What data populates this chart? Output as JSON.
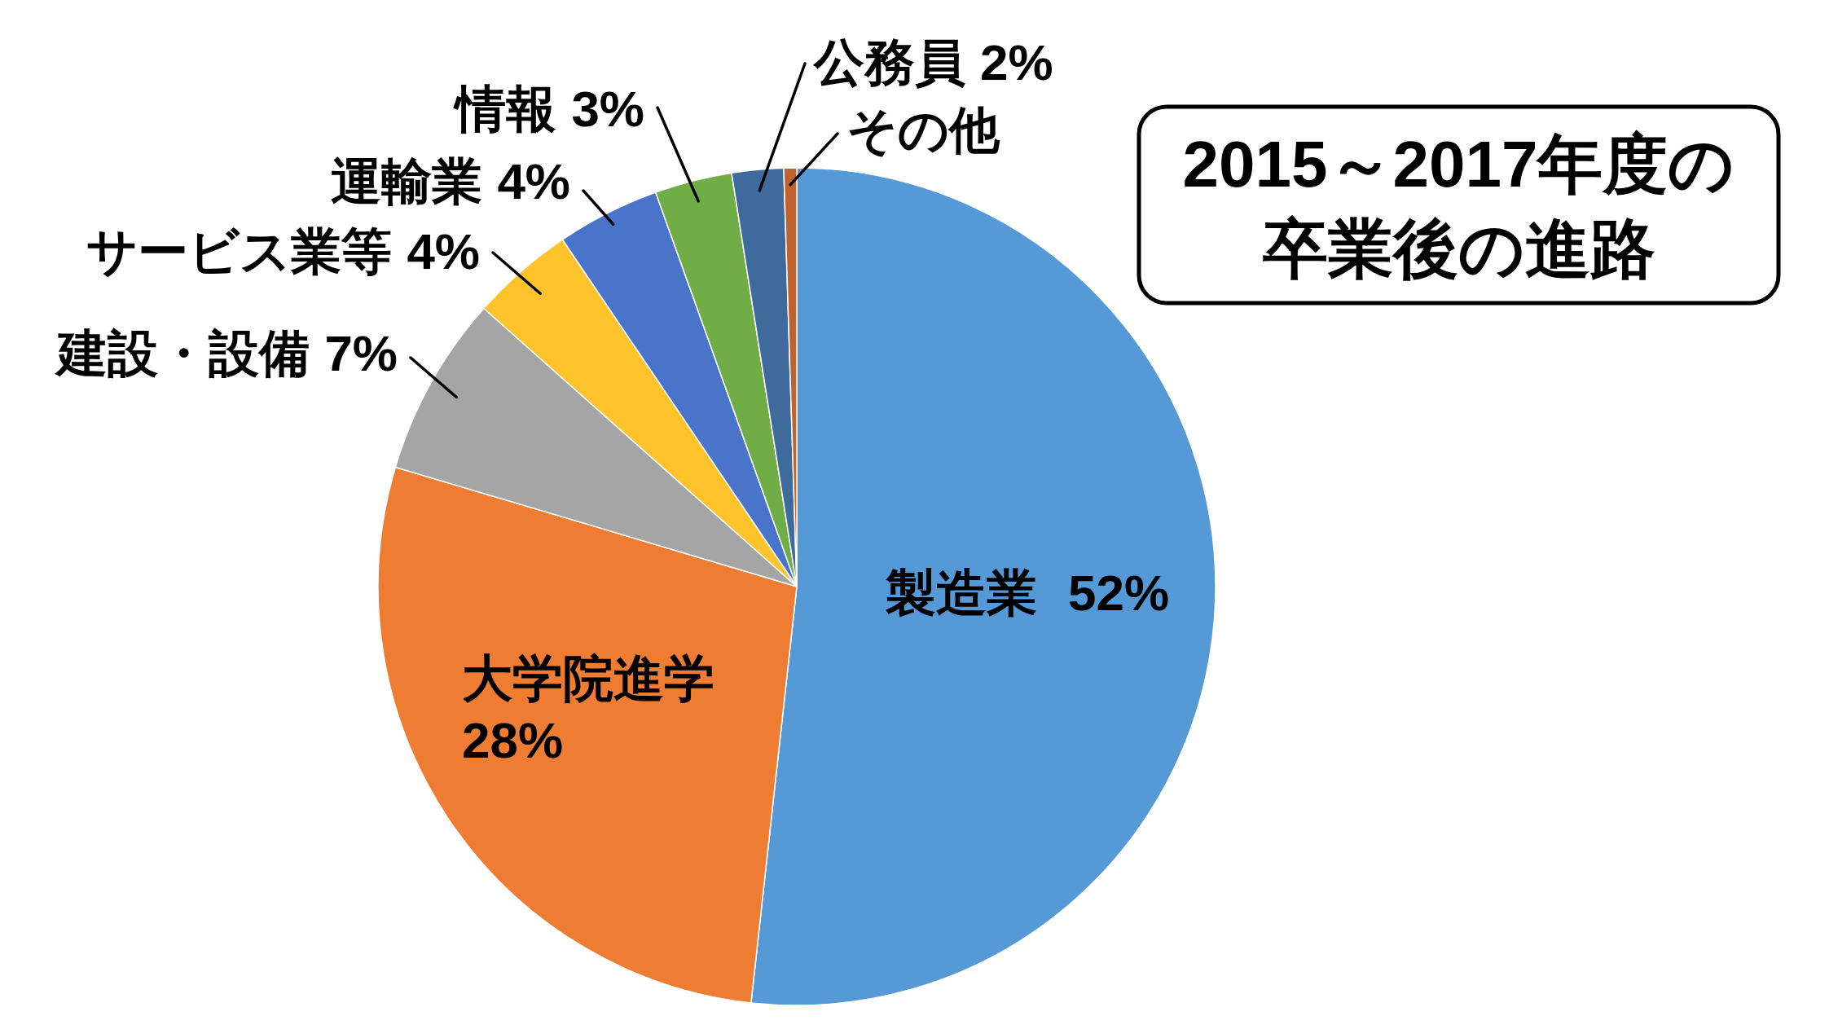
{
  "chart_data": {
    "type": "pie",
    "title": "2015～2017年度の卒業後の進路",
    "categories": [
      "製造業",
      "大学院進学",
      "建設・設備",
      "サービス業等",
      "運輸業",
      "情報",
      "公務員",
      "その他"
    ],
    "values": [
      52,
      28,
      7,
      4,
      4,
      3,
      2,
      0.5
    ],
    "colors": [
      "#5599d6",
      "#ee7d33",
      "#a5a5a5",
      "#fec22a",
      "#4a74c9",
      "#70ad47",
      "#3e6a9c",
      "#c0622f"
    ],
    "value_labels": [
      "52%",
      "28%",
      "7%",
      "4%",
      "4%",
      "3%",
      "2%",
      null
    ]
  }
}
